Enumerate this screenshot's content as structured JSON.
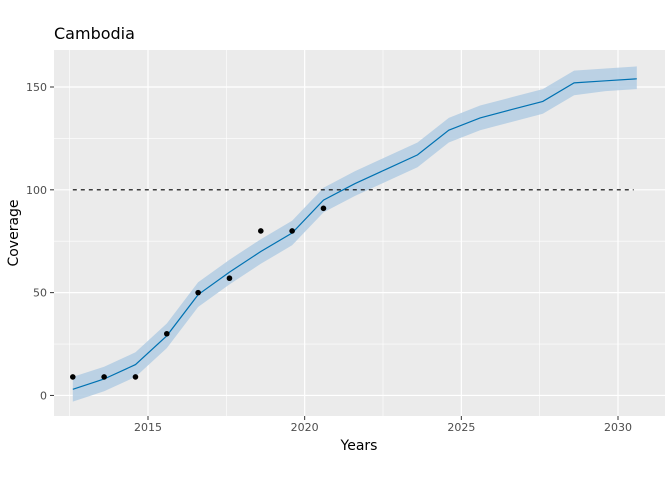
{
  "chart_data": {
    "type": "line",
    "title": "Cambodia",
    "xlabel": "Years",
    "ylabel": "Coverage",
    "xlim": [
      2012.0,
      2031.5
    ],
    "ylim": [
      -10,
      168
    ],
    "x_ticks": [
      2015,
      2020,
      2025,
      2030
    ],
    "y_ticks": [
      0,
      50,
      100,
      150
    ],
    "grid": true,
    "legend": "none",
    "reference_line": {
      "y": 100,
      "x_range": [
        2012.6,
        2030.5
      ],
      "style": "dashed"
    },
    "fitted_series": {
      "x": [
        2012.6,
        2013.6,
        2014.6,
        2015.6,
        2016.6,
        2017.6,
        2018.6,
        2019.6,
        2020.6,
        2021.6,
        2022.6,
        2023.6,
        2024.6,
        2025.6,
        2026.6,
        2027.6,
        2028.6,
        2029.6,
        2030.6
      ],
      "y": [
        3,
        8,
        15,
        29,
        49,
        60,
        70,
        79,
        95,
        103,
        110,
        117,
        129,
        135,
        139,
        143,
        152,
        153,
        154
      ],
      "lower": [
        -3,
        2,
        9,
        23,
        43,
        54,
        64,
        73,
        89,
        97,
        104,
        111,
        123,
        129,
        133,
        137,
        146,
        148,
        149
      ],
      "upper": [
        9,
        14,
        21,
        35,
        55,
        66,
        76,
        85,
        101,
        109,
        116,
        123,
        135,
        141,
        145,
        149,
        158,
        159,
        160
      ]
    },
    "observed_points": {
      "x": [
        2012.6,
        2013.6,
        2014.6,
        2015.6,
        2016.6,
        2017.6,
        2018.6,
        2019.6,
        2020.6
      ],
      "y": [
        9,
        9,
        9,
        30,
        50,
        57,
        80,
        80,
        91
      ]
    },
    "colors": {
      "panel": "#ebebeb",
      "grid": "#ffffff",
      "line": "#0072b2",
      "ribbon": "#b3cde3",
      "points": "#000000",
      "reference": "#000000"
    }
  }
}
